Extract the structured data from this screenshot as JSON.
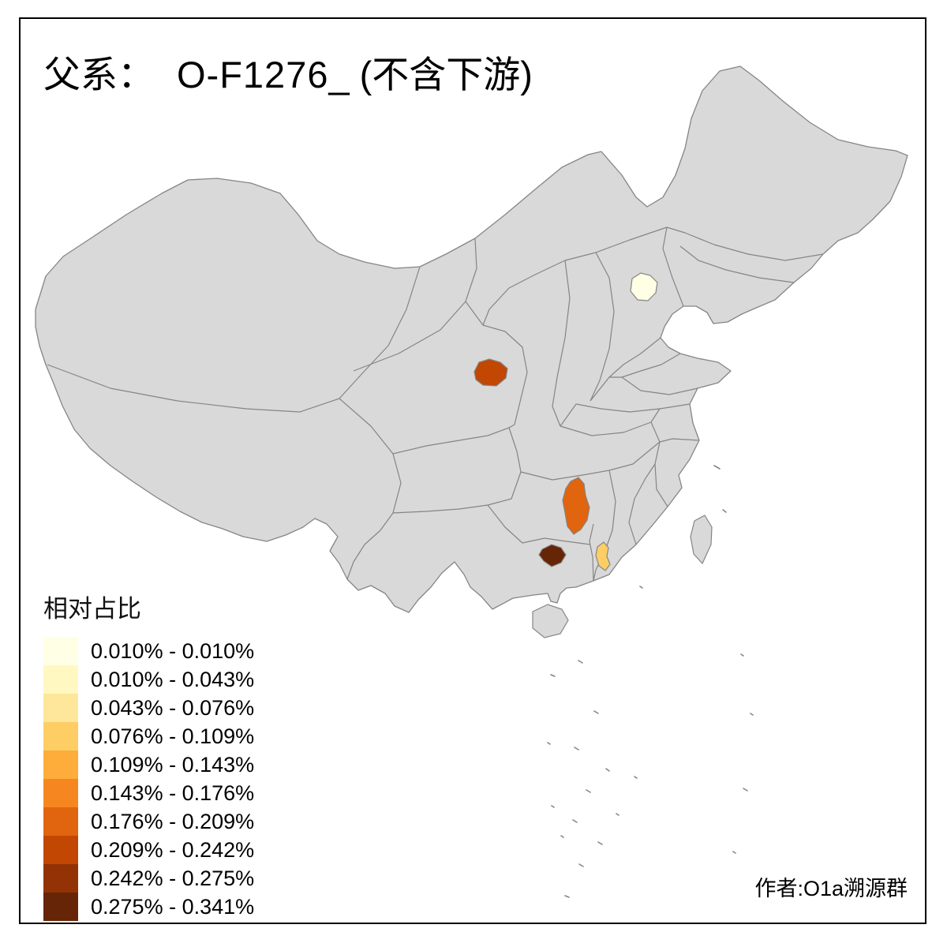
{
  "title": {
    "prefix": "父系：",
    "main": "O-F1276_",
    "suffix": "(不含下游)"
  },
  "attribution": "作者:O1a溯源群",
  "legend": {
    "title": "相对占比",
    "classes": [
      {
        "label": "0.010% - 0.010%",
        "color": "#FFFFE5"
      },
      {
        "label": "0.010% - 0.043%",
        "color": "#FFF8C1"
      },
      {
        "label": "0.043% - 0.076%",
        "color": "#FEE79B"
      },
      {
        "label": "0.076% - 0.109%",
        "color": "#FECE65"
      },
      {
        "label": "0.109% - 0.143%",
        "color": "#FEAC3A"
      },
      {
        "label": "0.143% - 0.176%",
        "color": "#F68720"
      },
      {
        "label": "0.176% - 0.209%",
        "color": "#E1640E"
      },
      {
        "label": "0.209% - 0.242%",
        "color": "#C14702"
      },
      {
        "label": "0.242% - 0.275%",
        "color": "#933204"
      },
      {
        "label": "0.275% - 0.341%",
        "color": "#662506"
      }
    ]
  },
  "map": {
    "base_fill": "#D9D9D9",
    "border_color": "#858585",
    "sea_color": "#FFFFFF",
    "highlighted_regions": [
      {
        "name": "beijing",
        "value_range": "0.010% - 0.010%",
        "color": "#FFFFE5"
      },
      {
        "name": "ningxia-area",
        "value_range": "0.209% - 0.242%",
        "color": "#C14702"
      },
      {
        "name": "central-hunan",
        "value_range": "0.176% - 0.209%",
        "color": "#E1640E"
      },
      {
        "name": "east-guangxi",
        "value_range": "0.275% - 0.341%",
        "color": "#662506"
      },
      {
        "name": "central-guangdong",
        "value_range": "0.076% - 0.109%",
        "color": "#FECE65"
      }
    ]
  }
}
